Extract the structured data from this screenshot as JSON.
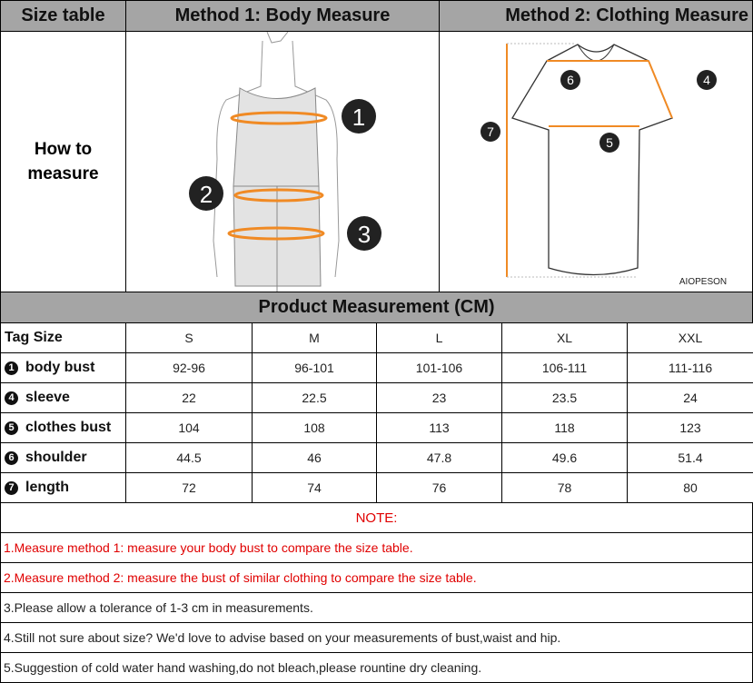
{
  "header": {
    "size_table": "Size table",
    "method1": "Method 1: Body  Measure",
    "method2": "Method 2: Clothing Measure"
  },
  "how_to": "How to measure",
  "body_markers": [
    "1",
    "2",
    "3"
  ],
  "shirt_markers": [
    "4",
    "5",
    "6",
    "7"
  ],
  "brand": "AIOPESON",
  "colors": {
    "header_bg": "#a5a5a5",
    "measure_line": "#f08a24",
    "note_red": "#e00000"
  },
  "product_title": "Product Measurement (CM)",
  "table": {
    "tag_label": "Tag Size",
    "sizes": [
      "S",
      "M",
      "L",
      "XL",
      "XXL"
    ],
    "rows": [
      {
        "num": "1",
        "label": "body bust",
        "values": [
          "92-96",
          "96-101",
          "101-106",
          "106-111",
          "111-116"
        ]
      },
      {
        "num": "4",
        "label": "sleeve",
        "values": [
          "22",
          "22.5",
          "23",
          "23.5",
          "24"
        ]
      },
      {
        "num": "5",
        "label": "clothes bust",
        "values": [
          "104",
          "108",
          "113",
          "118",
          "123"
        ]
      },
      {
        "num": "6",
        "label": "shoulder",
        "values": [
          "44.5",
          "46",
          "47.8",
          "49.6",
          "51.4"
        ]
      },
      {
        "num": "7",
        "label": "length",
        "values": [
          "72",
          "74",
          "76",
          "78",
          "80"
        ]
      }
    ]
  },
  "notes": {
    "title": "NOTE:",
    "items": [
      "1.Measure method 1: measure your body bust to compare the size table.",
      "2.Measure method 2: measure the bust of similar clothing to compare the size table.",
      "3.Please allow a tolerance of 1-3 cm in measurements.",
      "4.Still not sure about size? We'd love to advise based on your measurements of bust,waist and hip.",
      "5.Suggestion of cold water hand washing,do not bleach,please rountine dry cleaning."
    ]
  }
}
